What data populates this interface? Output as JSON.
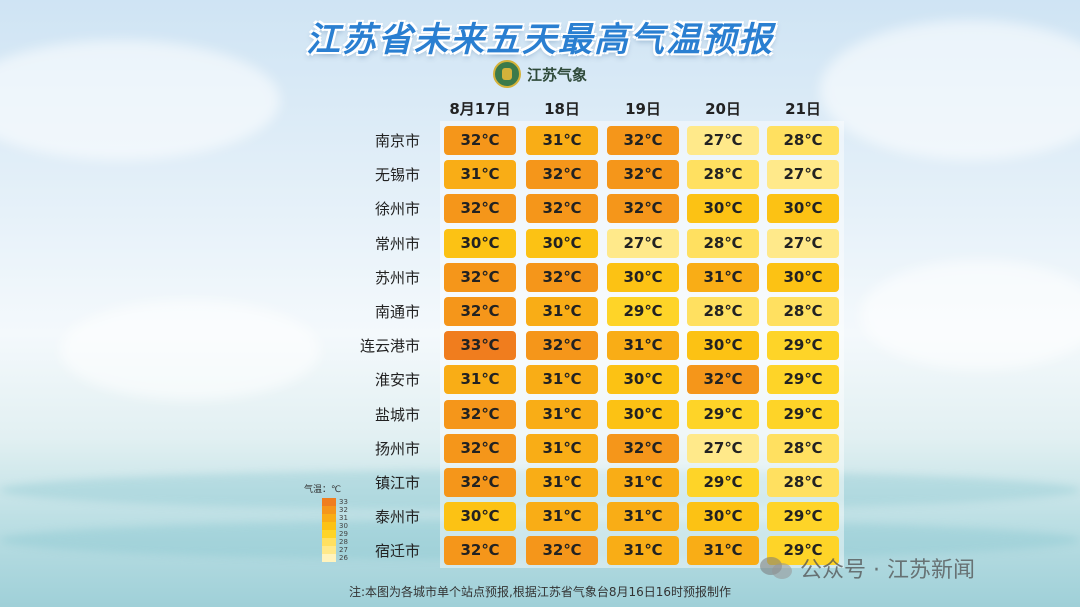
{
  "title": "江苏省未来五天最高气温预报",
  "logo_text": "江苏气象",
  "note": "注:本图为各城市单个站点预报,根据江苏省气象台8月16日16时预报制作",
  "watermark": "公众号 · 江苏新闻",
  "legend": {
    "title": "气温：℃",
    "levels": [
      {
        "label": "33",
        "color": "#f07d1e"
      },
      {
        "label": "32",
        "color": "#f5961a"
      },
      {
        "label": "31",
        "color": "#f9ad16"
      },
      {
        "label": "30",
        "color": "#fcc214"
      },
      {
        "label": "29",
        "color": "#fed428"
      },
      {
        "label": "28",
        "color": "#ffe060"
      },
      {
        "label": "27",
        "color": "#ffe98a"
      },
      {
        "label": "26",
        "color": "#fff3bd"
      }
    ]
  },
  "chart_data": {
    "type": "table",
    "unit": "℃",
    "columns": [
      "8月17日",
      "18日",
      "19日",
      "20日",
      "21日"
    ],
    "rows": [
      {
        "city": "南京市",
        "values": [
          32,
          31,
          32,
          27,
          28
        ]
      },
      {
        "city": "无锡市",
        "values": [
          31,
          32,
          32,
          28,
          27
        ]
      },
      {
        "city": "徐州市",
        "values": [
          32,
          32,
          32,
          30,
          30
        ]
      },
      {
        "city": "常州市",
        "values": [
          30,
          30,
          27,
          28,
          27
        ]
      },
      {
        "city": "苏州市",
        "values": [
          32,
          32,
          30,
          31,
          30
        ]
      },
      {
        "city": "南通市",
        "values": [
          32,
          31,
          29,
          28,
          28
        ]
      },
      {
        "city": "连云港市",
        "values": [
          33,
          32,
          31,
          30,
          29
        ]
      },
      {
        "city": "淮安市",
        "values": [
          31,
          31,
          30,
          32,
          29
        ]
      },
      {
        "city": "盐城市",
        "values": [
          32,
          31,
          30,
          29,
          29
        ]
      },
      {
        "city": "扬州市",
        "values": [
          32,
          31,
          32,
          27,
          28
        ]
      },
      {
        "city": "镇江市",
        "values": [
          32,
          31,
          31,
          29,
          28
        ]
      },
      {
        "city": "泰州市",
        "values": [
          30,
          31,
          31,
          30,
          29
        ]
      },
      {
        "city": "宿迁市",
        "values": [
          32,
          32,
          31,
          31,
          29
        ]
      }
    ],
    "cell_colors": {
      "33": "#f07d1e",
      "32": "#f5961a",
      "31": "#f9ad16",
      "30": "#fcc214",
      "29": "#fed428",
      "28": "#ffe060",
      "27": "#ffe98a",
      "26": "#fff3bd"
    }
  }
}
